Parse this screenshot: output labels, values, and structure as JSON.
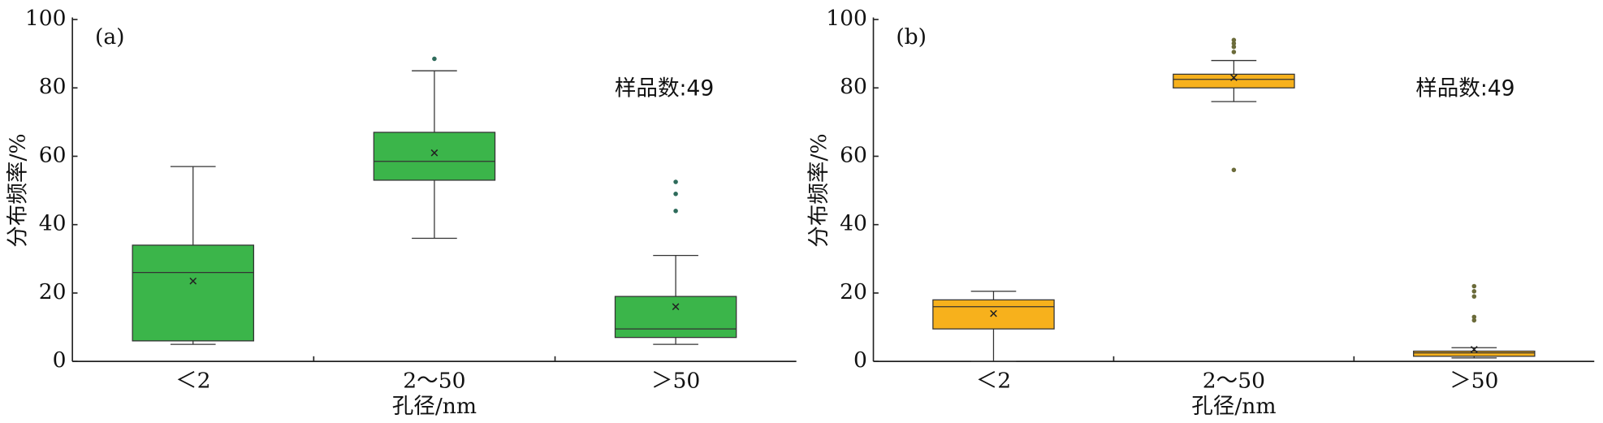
{
  "chart_data": [
    {
      "type": "box",
      "label": "(a)",
      "annotation": "样品数:49",
      "xlabel": "孔径/nm",
      "ylabel": "分布频率/%",
      "categories": [
        "＜2",
        "2～50",
        "＞50"
      ],
      "ylim": [
        0,
        100
      ],
      "yticks": [
        0,
        20,
        40,
        60,
        80,
        100
      ],
      "color": "#3bb54a",
      "outlier_color": "#2e6b5b",
      "boxes": [
        {
          "min": 5,
          "q1": 6,
          "median": 26,
          "q3": 34,
          "max": 57,
          "mean": 23.5,
          "outliers": []
        },
        {
          "min": 36,
          "q1": 53,
          "median": 58.5,
          "q3": 67,
          "max": 85,
          "mean": 61,
          "outliers": [
            88.5
          ]
        },
        {
          "min": 5,
          "q1": 7,
          "median": 9.5,
          "q3": 19,
          "max": 31,
          "mean": 16,
          "outliers": [
            44,
            49,
            52.5
          ]
        }
      ]
    },
    {
      "type": "box",
      "label": "(b)",
      "annotation": "样品数:49",
      "xlabel": "孔径/nm",
      "ylabel": "分布频率/%",
      "categories": [
        "＜2",
        "2～50",
        "＞50"
      ],
      "ylim": [
        0,
        100
      ],
      "yticks": [
        0,
        20,
        40,
        60,
        80,
        100
      ],
      "color": "#f7b11c",
      "outlier_color": "#6b6b3a",
      "boxes": [
        {
          "min": 0,
          "q1": 9.5,
          "median": 16,
          "q3": 18,
          "max": 20.5,
          "mean": 14,
          "outliers": []
        },
        {
          "min": 76,
          "q1": 80,
          "median": 82.5,
          "q3": 84,
          "max": 88,
          "mean": 83,
          "outliers": [
            56,
            90.5,
            92,
            93,
            94
          ]
        },
        {
          "min": 1,
          "q1": 1.5,
          "median": 2.5,
          "q3": 3,
          "max": 4,
          "mean": 3.5,
          "outliers": [
            12,
            13,
            19,
            20.5,
            22
          ]
        }
      ]
    }
  ]
}
